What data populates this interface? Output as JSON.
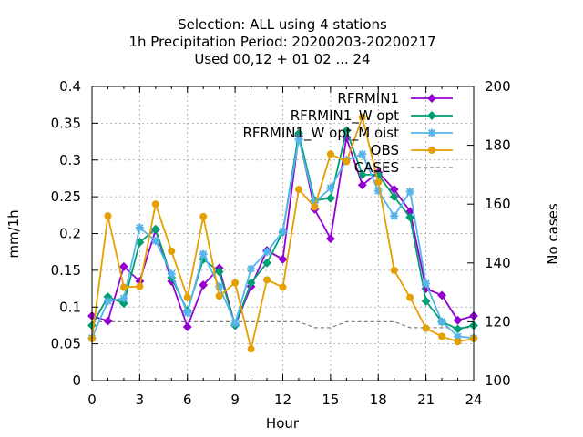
{
  "chart_data": {
    "type": "line",
    "title_lines": [
      "Selection: ALL using      4 stations",
      "1h Precipitation   Period: 20200203-20200217",
      "Used  00,12  + 01 02 ... 24"
    ],
    "xlabel": "Hour",
    "ylabel": "mm/1h",
    "y2label": "No cases",
    "xlim": [
      0,
      24
    ],
    "ylim": [
      0,
      0.4
    ],
    "y2lim": [
      100,
      200
    ],
    "x_ticks": [
      "0",
      "3",
      "6",
      "9",
      "12",
      "15",
      "18",
      "21",
      "24"
    ],
    "y_ticks": [
      "0",
      "0.05",
      "0.1",
      "0.15",
      "0.2",
      "0.25",
      "0.3",
      "0.35",
      "0.4"
    ],
    "y2_ticks": [
      "100",
      "120",
      "140",
      "160",
      "180",
      "200"
    ],
    "grid": true,
    "legend_position": "top-right",
    "x": [
      0,
      1,
      2,
      3,
      4,
      5,
      6,
      7,
      8,
      9,
      10,
      11,
      12,
      13,
      14,
      15,
      16,
      17,
      18,
      19,
      20,
      21,
      22,
      23,
      24
    ],
    "series": [
      {
        "name": "RFRMIN1",
        "color": "#9400d3",
        "marker": "plus",
        "values": [
          0.088,
          0.081,
          0.155,
          0.135,
          0.205,
          0.135,
          0.073,
          0.13,
          0.153,
          0.075,
          0.128,
          0.177,
          0.165,
          0.333,
          0.233,
          0.193,
          0.33,
          0.266,
          0.283,
          0.26,
          0.23,
          0.125,
          0.116,
          0.082,
          0.088
        ]
      },
      {
        "name": "RFRMIN1_W opt",
        "color": "#009e73",
        "marker": "plus",
        "values": [
          0.075,
          0.114,
          0.105,
          0.188,
          0.206,
          0.14,
          0.095,
          0.165,
          0.148,
          0.075,
          0.133,
          0.16,
          0.202,
          0.336,
          0.245,
          0.248,
          0.34,
          0.28,
          0.28,
          0.25,
          0.222,
          0.108,
          0.08,
          0.07,
          0.075
        ]
      },
      {
        "name": "RFRMIN1_W opt_M oist",
        "color": "#56b4e9",
        "marker": "star",
        "values": [
          0.058,
          0.108,
          0.112,
          0.208,
          0.19,
          0.145,
          0.092,
          0.172,
          0.128,
          0.078,
          0.152,
          0.175,
          0.203,
          0.328,
          0.242,
          0.262,
          0.3,
          0.308,
          0.258,
          0.224,
          0.257,
          0.132,
          0.08,
          0.06,
          0.058
        ]
      },
      {
        "name": "OBS",
        "color": "#e69f00",
        "marker": "circle",
        "values": [
          0.057,
          0.224,
          0.127,
          0.128,
          0.24,
          0.176,
          0.113,
          0.223,
          0.115,
          0.133,
          0.043,
          0.137,
          0.127,
          0.26,
          0.236,
          0.308,
          0.298,
          0.358,
          0.27,
          0.15,
          0.113,
          0.071,
          0.06,
          0.053,
          0.057
        ]
      }
    ],
    "cases_series": {
      "name": "CASES",
      "color": "#808080",
      "axis": "y2",
      "style": "dashed",
      "values": [
        120,
        120,
        120,
        120,
        120,
        120,
        120,
        120,
        120,
        120,
        120,
        120,
        120,
        120,
        118,
        118,
        120,
        120,
        120,
        120,
        118,
        118,
        118,
        118,
        118
      ]
    }
  }
}
